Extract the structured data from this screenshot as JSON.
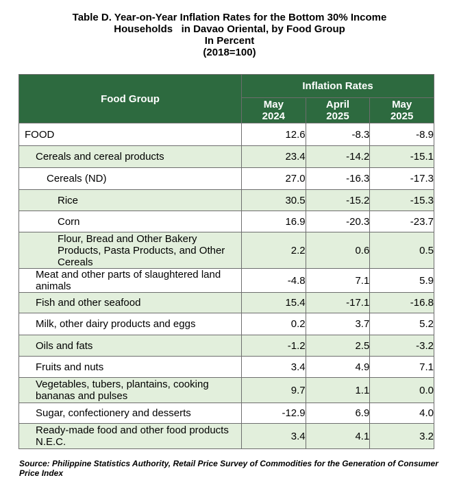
{
  "title": {
    "line1": "Table D. Year-on-Year Inflation Rates for the Bottom 30% Income",
    "line2": "Households   in Davao Oriental, by Food Group",
    "line3": "In Percent",
    "line4": "(2018=100)"
  },
  "table": {
    "header_group": "Food Group",
    "header_rates": "Inflation Rates",
    "columns": [
      {
        "month": "May",
        "year": "2024"
      },
      {
        "month": "April",
        "year": "2025"
      },
      {
        "month": "May",
        "year": "2025"
      }
    ],
    "rows": [
      {
        "name": "FOOD",
        "level": 0,
        "values": [
          "12.6",
          "-8.3",
          "-8.9"
        ]
      },
      {
        "name": "Cereals and cereal products",
        "level": 1,
        "values": [
          "23.4",
          "-14.2",
          "-15.1"
        ]
      },
      {
        "name": "Cereals (ND)",
        "level": 2,
        "values": [
          "27.0",
          "-16.3",
          "-17.3"
        ]
      },
      {
        "name": "Rice",
        "level": 3,
        "values": [
          "30.5",
          "-15.2",
          "-15.3"
        ]
      },
      {
        "name": "Corn",
        "level": 3,
        "values": [
          "16.9",
          "-20.3",
          "-23.7"
        ]
      },
      {
        "name": "Flour, Bread and Other Bakery Products, Pasta Products, and Other Cereals",
        "level": 3,
        "values": [
          "2.2",
          "0.6",
          "0.5"
        ]
      },
      {
        "name": "Meat and other parts of slaughtered land animals",
        "level": 1,
        "values": [
          "-4.8",
          "7.1",
          "5.9"
        ]
      },
      {
        "name": "Fish and other seafood",
        "level": 1,
        "values": [
          "15.4",
          "-17.1",
          "-16.8"
        ]
      },
      {
        "name": "Milk, other dairy products and eggs",
        "level": 1,
        "values": [
          "0.2",
          "3.7",
          "5.2"
        ]
      },
      {
        "name": "Oils and fats",
        "level": 1,
        "values": [
          "-1.2",
          "2.5",
          "-3.2"
        ]
      },
      {
        "name": "Fruits and nuts",
        "level": 1,
        "values": [
          "3.4",
          "4.9",
          "7.1"
        ]
      },
      {
        "name": "Vegetables, tubers, plantains, cooking bananas and pulses",
        "level": 1,
        "values": [
          "9.7",
          "1.1",
          "0.0"
        ]
      },
      {
        "name": "Sugar, confectionery and desserts",
        "level": 1,
        "values": [
          "-12.9",
          "6.9",
          "4.0"
        ]
      },
      {
        "name": "Ready-made food and other food products N.E.C.",
        "level": 1,
        "values": [
          "3.4",
          "4.1",
          "3.2"
        ]
      }
    ]
  },
  "source": "Source: Philippine Statistics Authority, Retail Price Survey of Commodities for the Generation of Consumer Price Index"
}
